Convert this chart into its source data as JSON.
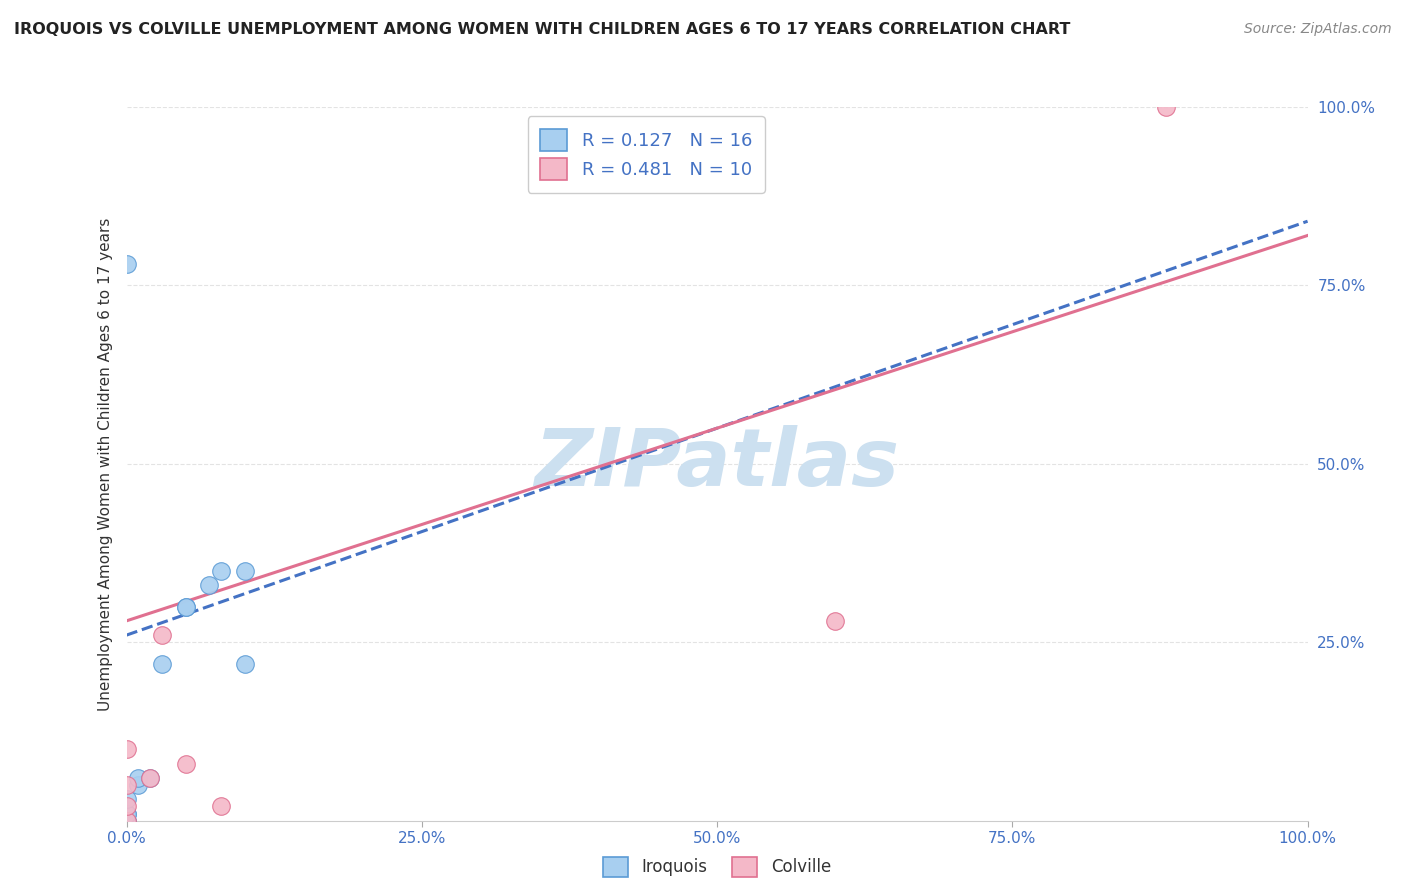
{
  "title": "IROQUOIS VS COLVILLE UNEMPLOYMENT AMONG WOMEN WITH CHILDREN AGES 6 TO 17 YEARS CORRELATION CHART",
  "source": "Source: ZipAtlas.com",
  "ylabel": "Unemployment Among Women with Children Ages 6 to 17 years",
  "xlim": [
    0,
    1.0
  ],
  "ylim": [
    0,
    1.0
  ],
  "xticks": [
    0.0,
    0.25,
    0.5,
    0.75,
    1.0
  ],
  "xticklabels": [
    "0.0%",
    "25.0%",
    "50.0%",
    "75.0%",
    "100.0%"
  ],
  "yticks": [
    0.25,
    0.5,
    0.75,
    1.0
  ],
  "yticklabels": [
    "25.0%",
    "50.0%",
    "75.0%",
    "100.0%"
  ],
  "ytick_color": "#4472c4",
  "xtick_color": "#4472c4",
  "iroquois_color": "#a8cff0",
  "colville_color": "#f4b8c8",
  "iroquois_edge": "#5b9bd5",
  "colville_edge": "#e07090",
  "iroquois_line_color": "#4472c4",
  "colville_line_color": "#e07090",
  "iroquois_R": 0.127,
  "iroquois_N": 16,
  "colville_R": 0.481,
  "colville_N": 10,
  "legend_label_iroquois": "Iroquois",
  "legend_label_colville": "Colville",
  "r_text_color": "#4472c4",
  "watermark": "ZIPatlas",
  "watermark_color": "#cce0f0",
  "iroquois_scatter_x": [
    0.0,
    0.0,
    0.0,
    0.0,
    0.0,
    0.01,
    0.01,
    0.02,
    0.03,
    0.05,
    0.05,
    0.07,
    0.08,
    0.1,
    0.1,
    0.0
  ],
  "iroquois_scatter_y": [
    0.0,
    0.0,
    0.01,
    0.01,
    0.03,
    0.05,
    0.06,
    0.06,
    0.22,
    0.3,
    0.3,
    0.33,
    0.35,
    0.22,
    0.35,
    0.78
  ],
  "colville_scatter_x": [
    0.0,
    0.0,
    0.0,
    0.0,
    0.02,
    0.03,
    0.05,
    0.08,
    0.6,
    0.88
  ],
  "colville_scatter_y": [
    0.0,
    0.02,
    0.05,
    0.1,
    0.06,
    0.26,
    0.08,
    0.02,
    0.28,
    1.0
  ],
  "iroquois_line_x": [
    0.0,
    1.0
  ],
  "iroquois_line_y": [
    0.26,
    0.84
  ],
  "colville_line_x": [
    0.0,
    1.0
  ],
  "colville_line_y": [
    0.28,
    0.82
  ],
  "marker_size": 160,
  "background_color": "#ffffff",
  "grid_color": "#dddddd",
  "grid_alpha": 0.8
}
